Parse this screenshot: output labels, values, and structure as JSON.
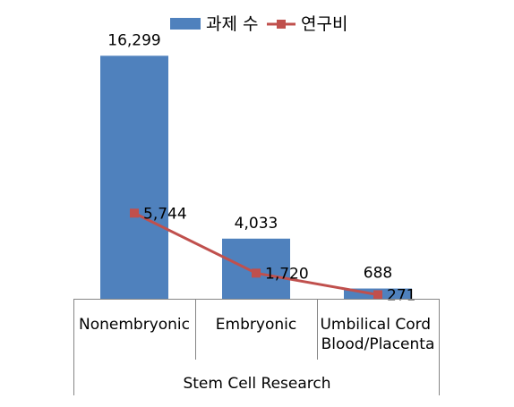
{
  "chart_data": {
    "type": "bar",
    "categories": [
      "Nonembryonic",
      "Embryonic",
      "Umbilical Cord\nBlood/Placenta"
    ],
    "xlabel": "Stem Cell Research",
    "legend_position": "top",
    "series": [
      {
        "name": "과제 수",
        "type": "bar",
        "color": "#4f81bd",
        "values": [
          16299,
          4033,
          688
        ],
        "labels": [
          "16,299",
          "4,033",
          "688"
        ]
      },
      {
        "name": "연구비",
        "type": "line",
        "color": "#c0504d",
        "values": [
          5744,
          1720,
          271
        ],
        "labels": [
          "5,744",
          "1,720",
          "271"
        ]
      }
    ],
    "ylim": [
      0,
      18000
    ],
    "grid": false
  }
}
